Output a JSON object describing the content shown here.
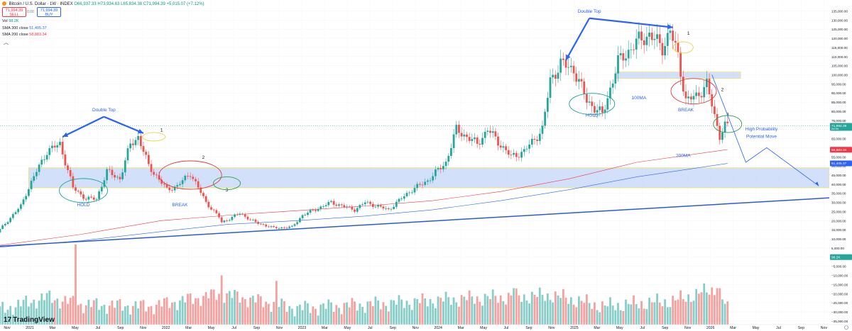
{
  "header": {
    "symbol": "Bitcoin / U.S. Dollar · 1W · INDEX",
    "ohlc": "O66,937.33 H73,934.63 L65,834.38 C71,994.39 +5,015.07 (+7.12%)",
    "sell_price": "71,994.39",
    "sell_label": "SELL",
    "buy_price": "71,994.39",
    "buy_label": "BUY",
    "spread": "0.00"
  },
  "indicators": {
    "vol_label": "Vol",
    "vol_value": "98.2K",
    "sma300_label": "SMA 300 close",
    "sma300_value": "51,405.37",
    "sma200_label": "SMA 200 close",
    "sma200_value": "58,883.34"
  },
  "collapse_icon": "chevron-up-icon",
  "branding": {
    "logo": "TradingView"
  },
  "colors": {
    "up": "#26a69a",
    "down": "#ef5350",
    "sma200": "#f23645",
    "sma300": "#2962ff",
    "annotation": "#2962ff",
    "zone": "#bcd0f7"
  },
  "chart_data": {
    "type": "candlestick",
    "title": "Bitcoin / U.S. Dollar · 1W · INDEX",
    "price_axis": [
      "135,000.00",
      "130,000.00",
      "125,000.00",
      "120,000.00",
      "115,000.00",
      "110,000.00",
      "105,000.00",
      "100,000.00",
      "95,000.00",
      "90,000.00",
      "85,000.00",
      "80,000.00",
      "75,000.00",
      "70,000.00",
      "65,000.00",
      "60,000.00",
      "55,000.00",
      "50,000.00",
      "45,000.00",
      "40,000.00",
      "35,000.00",
      "30,000.00",
      "25,000.00",
      "20,000.00",
      "15,000.00",
      "10,000.00",
      "5,000.00",
      "0.00",
      "−5,000.00",
      "−10,000.00",
      "−15,000.00",
      "−20,000.00",
      "−25,000.00",
      "−30,000.00",
      "−35,000.00"
    ],
    "price_axis_values": [
      135000,
      130000,
      125000,
      120000,
      115000,
      110000,
      105000,
      100000,
      95000,
      90000,
      85000,
      80000,
      75000,
      70000,
      65000,
      60000,
      55000,
      50000,
      45000,
      40000,
      35000,
      30000,
      25000,
      20000,
      15000,
      10000,
      5000,
      0,
      -5000,
      -10000,
      -15000,
      -20000,
      -25000,
      -30000,
      -35000
    ],
    "ylim": [
      -37000,
      141000
    ],
    "time_axis": [
      "Nov",
      "2021",
      "Mar",
      "May",
      "Jul",
      "Sep",
      "Nov",
      "2022",
      "Mar",
      "May",
      "Jul",
      "Sep",
      "Nov",
      "2023",
      "Mar",
      "May",
      "Jul",
      "Sep",
      "Nov",
      "2024",
      "Mar",
      "May",
      "Jul",
      "Sep",
      "Nov",
      "2025",
      "Mar",
      "May",
      "Jul",
      "Sep",
      "Nov",
      "2026",
      "Mar",
      "May",
      "Jul",
      "Sep",
      "Nov"
    ],
    "xlim": [
      "2020-10-26",
      "2026-11-30"
    ],
    "weeks_per_tick": 8.7,
    "price_path": [
      [
        "2020-10-26",
        13600
      ],
      [
        "2020-12-28",
        28000
      ],
      [
        "2021-01-11",
        35000
      ],
      [
        "2021-02-08",
        47000
      ],
      [
        "2021-03-08",
        58000
      ],
      [
        "2021-04-12",
        62000
      ],
      [
        "2021-05-17",
        38000
      ],
      [
        "2021-06-21",
        32000
      ],
      [
        "2021-07-19",
        32000
      ],
      [
        "2021-08-16",
        47000
      ],
      [
        "2021-09-20",
        43000
      ],
      [
        "2021-10-18",
        62000
      ],
      [
        "2021-11-08",
        66000
      ],
      [
        "2021-12-06",
        50000
      ],
      [
        "2022-01-24",
        37000
      ],
      [
        "2022-02-21",
        39000
      ],
      [
        "2022-03-28",
        46000
      ],
      [
        "2022-05-09",
        30000
      ],
      [
        "2022-06-13",
        22000
      ],
      [
        "2022-06-20",
        19000
      ],
      [
        "2022-08-08",
        24000
      ],
      [
        "2022-09-19",
        19000
      ],
      [
        "2022-11-07",
        16000
      ],
      [
        "2022-12-26",
        16500
      ],
      [
        "2023-01-23",
        23000
      ],
      [
        "2023-04-10",
        30000
      ],
      [
        "2023-06-12",
        26000
      ],
      [
        "2023-07-10",
        30000
      ],
      [
        "2023-09-11",
        26000
      ],
      [
        "2023-11-06",
        36000
      ],
      [
        "2023-12-25",
        42000
      ],
      [
        "2024-02-12",
        52000
      ],
      [
        "2024-03-11",
        70000
      ],
      [
        "2024-05-06",
        62000
      ],
      [
        "2024-06-03",
        70000
      ],
      [
        "2024-08-05",
        55000
      ],
      [
        "2024-09-09",
        58000
      ],
      [
        "2024-10-28",
        70000
      ],
      [
        "2024-11-18",
        97000
      ],
      [
        "2024-12-16",
        106000
      ],
      [
        "2025-01-20",
        103000
      ],
      [
        "2025-02-24",
        86000
      ],
      [
        "2025-04-07",
        78000
      ],
      [
        "2025-05-19",
        107000
      ],
      [
        "2025-07-14",
        119000
      ],
      [
        "2025-08-11",
        122000
      ],
      [
        "2025-09-15",
        115000
      ],
      [
        "2025-10-06",
        124000
      ],
      [
        "2025-10-27",
        110000
      ],
      [
        "2025-11-17",
        86000
      ],
      [
        "2025-12-15",
        88000
      ],
      [
        "2026-01-12",
        95000
      ],
      [
        "2026-02-02",
        77000
      ],
      [
        "2026-02-16",
        67000
      ],
      [
        "2026-03-02",
        72000
      ]
    ],
    "volume_path": [
      [
        "2020-10-26",
        -29000
      ],
      [
        "2021-03-01",
        -22000
      ],
      [
        "2021-06-01",
        -26000
      ],
      [
        "2021-12-01",
        -27000
      ],
      [
        "2022-06-13",
        -20000
      ],
      [
        "2023-01-01",
        -28000
      ],
      [
        "2023-10-01",
        -25000
      ],
      [
        "2024-03-01",
        -23000
      ],
      [
        "2024-11-18",
        -21000
      ],
      [
        "2025-04-01",
        -27000
      ],
      [
        "2025-10-10",
        -24000
      ],
      [
        "2026-02-02",
        -17000
      ],
      [
        "2026-03-02",
        -29000
      ]
    ],
    "volume_spikes": [
      [
        "2021-05-17",
        7000
      ],
      [
        "2022-06-13",
        -10000
      ],
      [
        "2022-11-07",
        -13000
      ],
      [
        "2024-08-05",
        -17000
      ],
      [
        "2026-02-02",
        -17000
      ]
    ],
    "sma200_path": [
      [
        "2020-10-26",
        6500
      ],
      [
        "2021-06-01",
        12500
      ],
      [
        "2022-01-01",
        20000
      ],
      [
        "2022-07-01",
        23000
      ],
      [
        "2023-01-01",
        25500
      ],
      [
        "2023-07-01",
        28000
      ],
      [
        "2024-01-01",
        31000
      ],
      [
        "2024-07-01",
        36000
      ],
      [
        "2025-01-01",
        43000
      ],
      [
        "2025-07-01",
        52000
      ],
      [
        "2026-03-02",
        59000
      ]
    ],
    "sma300_path": [
      [
        "2020-10-26",
        5500
      ],
      [
        "2021-06-01",
        9000
      ],
      [
        "2022-01-01",
        14000
      ],
      [
        "2022-07-01",
        18000
      ],
      [
        "2023-01-01",
        20000
      ],
      [
        "2023-07-01",
        22500
      ],
      [
        "2024-01-01",
        26000
      ],
      [
        "2024-07-01",
        31000
      ],
      [
        "2025-01-01",
        37000
      ],
      [
        "2025-07-01",
        44000
      ],
      [
        "2026-03-02",
        51405
      ]
    ],
    "price_markers": [
      {
        "value": 71994.39,
        "label": "71,994.39",
        "sub": "2d 9h",
        "color": "#26a69a"
      },
      {
        "value": 58883.34,
        "label": "58,883.34",
        "color": "#f23645"
      },
      {
        "value": 51405.37,
        "label": "51,405.37",
        "color": "#2962ff"
      },
      {
        "value": 0,
        "label": "98.2K",
        "color": "#26a69a"
      }
    ],
    "support_zones": [
      {
        "from": 38000,
        "to": 49000,
        "start": "2021-01-11",
        "end": "2026-11-30"
      },
      {
        "from": 98000,
        "to": 101500,
        "start": "2025-05-05",
        "end": "2026-04-06"
      }
    ],
    "trendline": {
      "start": [
        "2020-10-26",
        6000
      ],
      "end": [
        "2026-11-30",
        32500
      ]
    },
    "annotations": [
      {
        "text": "Double Top",
        "date": "2021-08-01",
        "price": 80000,
        "color": "#2962ff"
      },
      {
        "text": "HOLD",
        "date": "2021-06-07",
        "price": 28000,
        "color": "#2962ff"
      },
      {
        "text": "BREAK",
        "date": "2022-02-21",
        "price": 28000,
        "color": "#2962ff"
      },
      {
        "text": "1",
        "date": "2022-01-03",
        "price": 69000,
        "color": "#131722"
      },
      {
        "text": "2",
        "date": "2022-04-25",
        "price": 54000,
        "color": "#131722"
      },
      {
        "text": "3",
        "date": "2022-06-27",
        "price": 36000,
        "color": "#131722"
      },
      {
        "text": "Double Top",
        "date": "2025-02-24",
        "price": 134000,
        "color": "#2962ff"
      },
      {
        "text": "HOLD",
        "date": "2025-03-03",
        "price": 77000,
        "color": "#2962ff"
      },
      {
        "text": "100MA",
        "date": "2025-07-07",
        "price": 86500,
        "color": "#2962ff"
      },
      {
        "text": "BREAK",
        "date": "2025-11-10",
        "price": 80000,
        "color": "#2962ff"
      },
      {
        "text": "1",
        "date": "2025-11-17",
        "price": 122000,
        "color": "#131722"
      },
      {
        "text": "2",
        "date": "2026-02-16",
        "price": 91000,
        "color": "#131722"
      },
      {
        "text": "3",
        "date": "2026-03-02",
        "price": 77500,
        "color": "#131722"
      },
      {
        "text": "200MA",
        "date": "2025-11-03",
        "price": 55000,
        "color": "#2962ff"
      },
      {
        "text": "High Probability",
        "date": "2026-06-01",
        "price": 69500,
        "color": "#2962ff"
      },
      {
        "text": "Potential Move",
        "date": "2026-06-01",
        "price": 65500,
        "color": "#2962ff"
      }
    ],
    "projection": [
      [
        "2026-01-19",
        100000
      ],
      [
        "2026-04-20",
        52000
      ],
      [
        "2026-06-15",
        60000
      ],
      [
        "2026-11-02",
        39000
      ]
    ]
  }
}
